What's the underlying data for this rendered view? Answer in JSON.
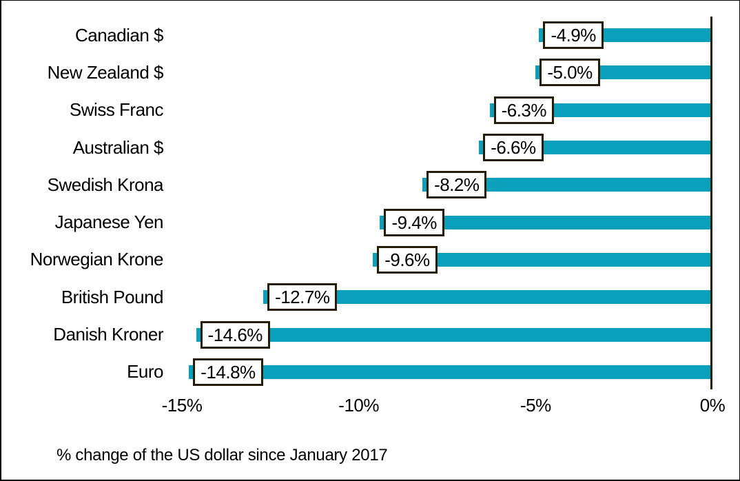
{
  "chart_data": {
    "type": "bar",
    "orientation": "horizontal",
    "title": "",
    "xlabel": "% change of the US dollar since January 2017",
    "ylabel": "",
    "categories": [
      "Canadian $",
      "New Zealand $",
      "Swiss Franc",
      "Australian $",
      "Swedish Krona",
      "Japanese Yen",
      "Norwegian Krone",
      "British Pound",
      "Danish Kroner",
      "Euro"
    ],
    "values": [
      -4.9,
      -5.0,
      -6.3,
      -6.6,
      -8.2,
      -9.4,
      -9.6,
      -12.7,
      -14.6,
      -14.8
    ],
    "value_labels": [
      "-4.9%",
      "-5.0%",
      "-6.3%",
      "-6.6%",
      "-8.2%",
      "-9.4%",
      "-9.6%",
      "-12.7%",
      "-14.6%",
      "-14.8%"
    ],
    "x_ticks": [
      {
        "value": -15,
        "label": "-15%"
      },
      {
        "value": -10,
        "label": "-10%"
      },
      {
        "value": -5,
        "label": "-5%"
      },
      {
        "value": 0,
        "label": "0%"
      }
    ],
    "xlim": [
      -15.25,
      0
    ],
    "grid": false,
    "legend": false,
    "bar_color": "#0a9fbb",
    "axis_color": "#241c06",
    "label_box_border_color": "#241c06",
    "label_box_fill": "#ffffff",
    "text_color": "#000000"
  }
}
